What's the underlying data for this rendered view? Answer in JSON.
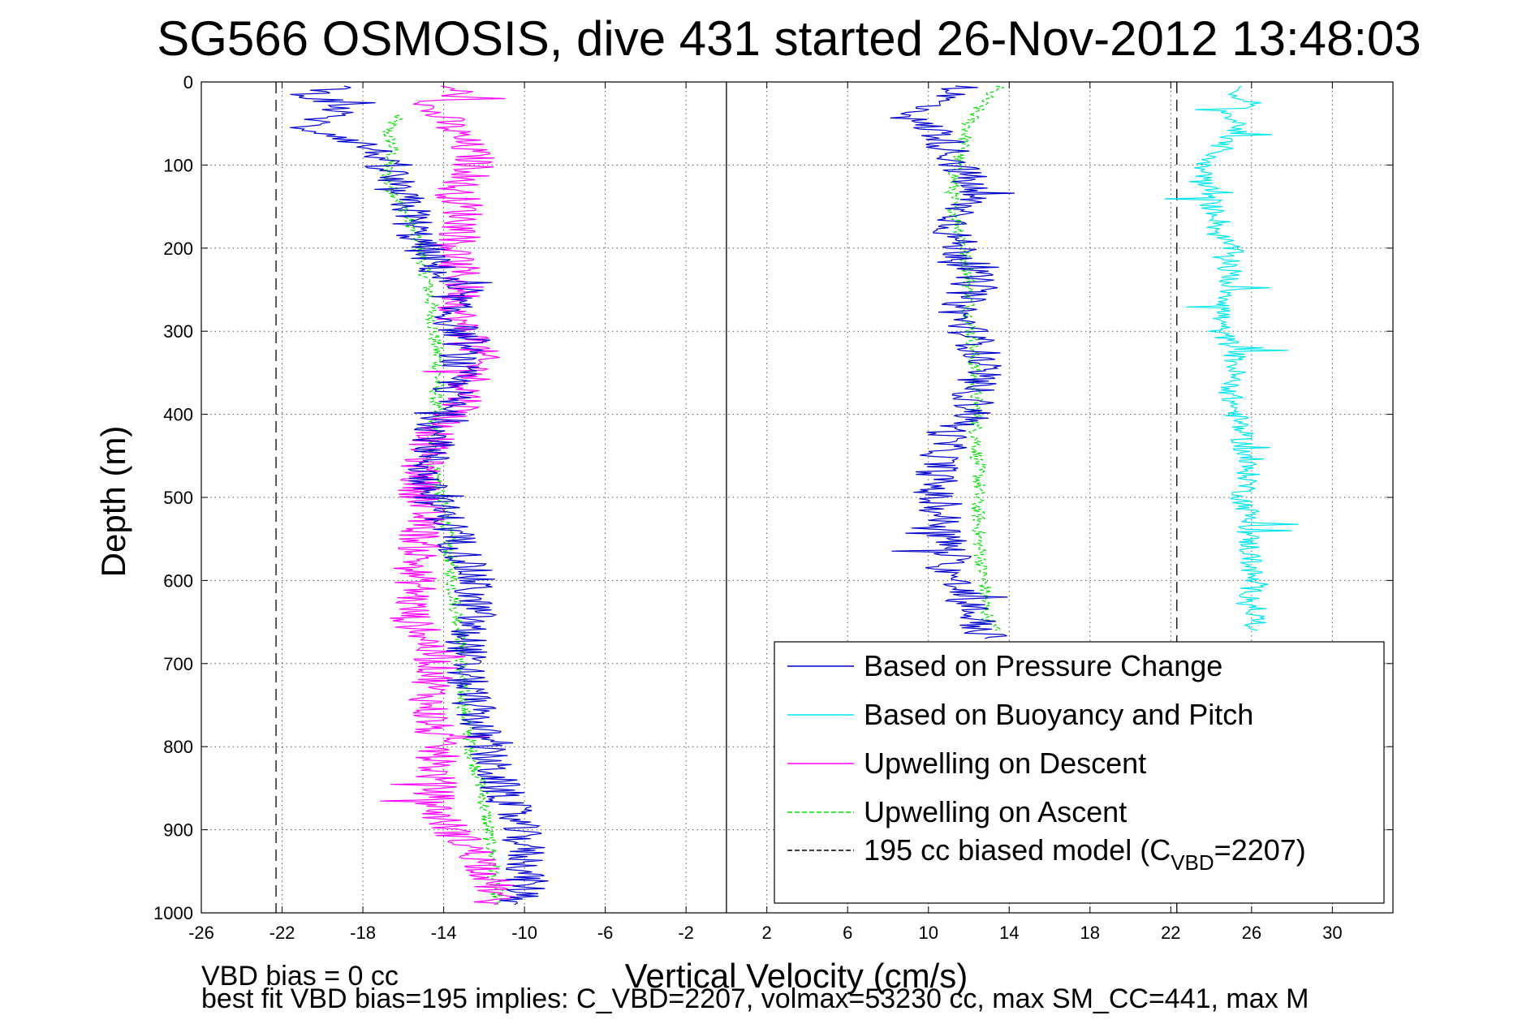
{
  "chart_data": {
    "type": "line",
    "title": "SG566 OSMOSIS, dive 431 started 26-Nov-2012 13:48:03",
    "xlabel": "Vertical Velocity (cm/s)",
    "ylabel": "Depth (m)",
    "xlim": [
      -26,
      33
    ],
    "ylim": [
      1000,
      0
    ],
    "y_reversed": true,
    "grid": true,
    "x_ticks": [
      "-26",
      "-22",
      "-18",
      "-14",
      "-10",
      "-6",
      "-2",
      "2",
      "6",
      "10",
      "14",
      "18",
      "22",
      "26",
      "30"
    ],
    "y_ticks": [
      "0",
      "100",
      "200",
      "300",
      "400",
      "500",
      "600",
      "700",
      "800",
      "900",
      "1000"
    ],
    "legend": {
      "placement": "lower-right",
      "entries": [
        {
          "label": "Based on Pressure Change",
          "color": "#0000cc",
          "style": "solid"
        },
        {
          "label": "Based on Buoyancy and Pitch",
          "color": "#00e5ee",
          "style": "solid"
        },
        {
          "label": "Upwelling on Descent",
          "color": "#ff00ff",
          "style": "solid"
        },
        {
          "label": "Upwelling on Ascent",
          "color": "#00dd00",
          "style": "dashed"
        },
        {
          "label_prefix": "195 cc biased model (C",
          "label_sub": "VBD",
          "label_suffix": "=2207)",
          "color": "#000000",
          "style": "dashed"
        }
      ]
    },
    "reference_lines": {
      "zero_line_x": 0,
      "biased_model_x": [
        -22.3,
        22.3
      ]
    },
    "series": [
      {
        "name": "Based on Pressure Change",
        "color": "#0000cc",
        "segments": [
          {
            "depth": [
              5,
              15,
              30,
              45,
              55,
              65,
              75,
              90,
              100,
              110,
              120,
              140,
              160,
              180,
              200,
              220,
              240,
              260,
              280,
              300,
              320,
              340,
              360,
              380,
              400,
              420,
              440,
              460,
              480,
              500,
              520,
              540,
              560,
              580,
              600,
              620,
              640,
              660,
              680,
              700,
              720,
              740,
              760,
              780,
              800,
              820,
              840,
              860,
              880,
              900,
              920,
              940,
              960,
              980,
              990
            ],
            "x": [
              -19,
              -20.5,
              -19,
              -20,
              -21,
              -19,
              -18,
              -17,
              -17.5,
              -16.5,
              -17,
              -16,
              -15.5,
              -15.5,
              -15,
              -14.5,
              -14,
              -13.5,
              -13.8,
              -13.2,
              -13,
              -13.3,
              -13.5,
              -13.6,
              -14,
              -14.4,
              -14.5,
              -14.8,
              -15,
              -14.6,
              -14,
              -13.6,
              -13.2,
              -12.8,
              -12.5,
              -12.7,
              -12.4,
              -12.9,
              -12.8,
              -13,
              -12.9,
              -12.7,
              -12.4,
              -12.2,
              -12,
              -11.7,
              -11.4,
              -11,
              -10.6,
              -10.3,
              -10,
              -9.9,
              -9.9,
              -10,
              -10.5
            ]
          },
          {
            "depth": [
              5,
              15,
              30,
              45,
              60,
              80,
              100,
              120,
              140,
              160,
              180,
              200,
              220,
              240,
              260,
              280,
              300,
              320,
              340,
              360,
              380,
              400,
              420,
              440,
              460,
              480,
              500,
              520,
              540,
              560,
              580,
              600,
              620,
              640,
              660,
              670
            ],
            "x": [
              12,
              11,
              10,
              9,
              10.5,
              11,
              11.5,
              12,
              12,
              11.5,
              11.2,
              11.5,
              12,
              12.2,
              11.8,
              11.5,
              12,
              12.5,
              12.6,
              12.3,
              12.2,
              12.3,
              11,
              10.8,
              10.5,
              10.4,
              10.2,
              10.6,
              10.8,
              11,
              11.2,
              11.2,
              11.8,
              12.2,
              12.6,
              12.8
            ]
          }
        ]
      },
      {
        "name": "Based on Buoyancy and Pitch",
        "color": "#00e5ee",
        "segments": [
          {
            "depth": [
              5,
              15,
              25,
              40,
              55,
              70,
              85,
              100,
              115,
              130,
              150,
              165,
              180,
              200,
              220,
              240,
              260,
              280,
              300,
              320,
              340,
              360,
              380,
              400,
              420,
              440,
              460,
              480,
              500,
              520,
              540,
              560,
              580,
              600,
              620,
              640,
              660
            ],
            "x": [
              26,
              24.5,
              26,
              24.8,
              25.5,
              24.5,
              24.5,
              23.5,
              23.8,
              23.9,
              24,
              24.5,
              24.2,
              25,
              25,
              24.9,
              24.9,
              24.5,
              24.4,
              25.1,
              25.2,
              25.1,
              25,
              25.2,
              25.5,
              25.6,
              25.7,
              25.9,
              25.5,
              25.9,
              25.8,
              25.9,
              26,
              26,
              26,
              26.2,
              26.3
            ]
          }
        ]
      },
      {
        "name": "Upwelling on Descent",
        "color": "#ff00ff",
        "segments": [
          {
            "depth": [
              5,
              15,
              30,
              45,
              60,
              75,
              90,
              110,
              130,
              150,
              170,
              190,
              210,
              230,
              250,
              270,
              290,
              310,
              330,
              350,
              370,
              390,
              410,
              430,
              450,
              470,
              490,
              510,
              530,
              550,
              570,
              590,
              610,
              630,
              650,
              670,
              690,
              710,
              730,
              750,
              770,
              790,
              810,
              830,
              850,
              870,
              890,
              910,
              930,
              950,
              970,
              990
            ],
            "x": [
              -14,
              -13,
              -15,
              -14,
              -13.5,
              -13,
              -12.5,
              -12.5,
              -13.5,
              -13,
              -13,
              -13.2,
              -13.5,
              -13.2,
              -13,
              -13.2,
              -13.3,
              -12.5,
              -12.3,
              -12.5,
              -12.8,
              -13,
              -14,
              -14.5,
              -15,
              -15.1,
              -15.2,
              -15,
              -15,
              -15.2,
              -15.2,
              -15.5,
              -15.3,
              -15.6,
              -15.6,
              -14.8,
              -14.5,
              -14.3,
              -14.6,
              -14.7,
              -14.6,
              -14.5,
              -14.3,
              -14.4,
              -14.4,
              -14.5,
              -14,
              -13.2,
              -12.3,
              -11.8,
              -11.5,
              -11.5
            ]
          }
        ]
      },
      {
        "name": "Upwelling on Ascent",
        "color": "#00dd00",
        "segments": [
          {
            "depth": [
              40,
              60,
              80,
              100,
              120,
              150,
              180,
              210,
              240,
              270,
              300,
              330,
              360,
              390,
              420,
              450,
              480,
              510,
              540,
              570,
              600,
              630,
              660,
              690,
              720,
              750,
              780,
              810,
              840,
              870,
              900,
              930,
              960,
              990
            ],
            "x": [
              -16.3,
              -16.8,
              -16.5,
              -16.8,
              -16.8,
              -16,
              -15.5,
              -15.1,
              -14.8,
              -14.6,
              -14.5,
              -14.3,
              -14.3,
              -14.4,
              -14.5,
              -14.6,
              -14.3,
              -14,
              -13.8,
              -13.7,
              -13.6,
              -13.4,
              -13.2,
              -13.1,
              -13.1,
              -13,
              -12.8,
              -12.6,
              -12.2,
              -12,
              -11.8,
              -11.6,
              -11.5,
              -11.3
            ]
          },
          {
            "depth": [
              5,
              15,
              30,
              50,
              70,
              90,
              110,
              130,
              150,
              170,
              190,
              210,
              230,
              250,
              270,
              290,
              310,
              330,
              350,
              370,
              390,
              410,
              430,
              450,
              470,
              490,
              510,
              530,
              550,
              570,
              590,
              610,
              630,
              650,
              660
            ],
            "x": [
              13.5,
              13,
              12.5,
              12,
              11.8,
              11.5,
              11.3,
              11.2,
              11.2,
              11.5,
              11.7,
              11.8,
              12,
              12,
              12,
              12,
              12.2,
              12.2,
              12.3,
              12.3,
              12.4,
              12.3,
              12.4,
              12.4,
              12.5,
              12.5,
              12.4,
              12.5,
              12.5,
              12.6,
              12.7,
              12.8,
              12.8,
              13,
              13.3
            ]
          }
        ]
      }
    ]
  },
  "footer": {
    "line1": "VBD bias = 0 cc",
    "line2": "best fit VBD bias=195 implies: C_VBD=2207, volmax=53230 cc, max SM_CC=441, max M"
  }
}
